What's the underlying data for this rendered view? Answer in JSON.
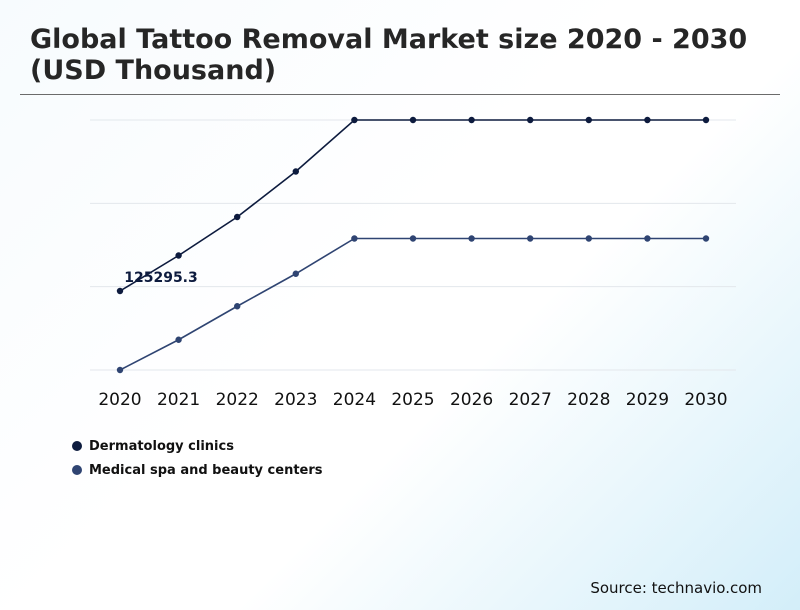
{
  "title": "Global Tattoo Removal Market size 2020 - 2030 (USD Thousand)",
  "source": "Source: technavio.com",
  "chart_data": {
    "type": "line",
    "x": [
      "2020",
      "2021",
      "2022",
      "2023",
      "2024",
      "2025",
      "2026",
      "2027",
      "2028",
      "2029",
      "2030"
    ],
    "ylim": [
      0,
      1
    ],
    "grid": true,
    "legend_position": "bottom-left",
    "series": [
      {
        "name": "Dermatology clinics",
        "color": "#0d1b3e",
        "values": [
          0.316,
          0.458,
          0.612,
          0.794,
          1.0,
          1.0,
          1.0,
          1.0,
          1.0,
          1.0,
          1.0
        ]
      },
      {
        "name": "Medical spa and beauty centers",
        "color": "#2f4472",
        "values": [
          0.0,
          0.121,
          0.255,
          0.385,
          0.526,
          0.526,
          0.526,
          0.526,
          0.526,
          0.526,
          0.526
        ]
      }
    ],
    "annotations": [
      {
        "series": 0,
        "x": "2020",
        "text": "125295.3"
      }
    ]
  }
}
